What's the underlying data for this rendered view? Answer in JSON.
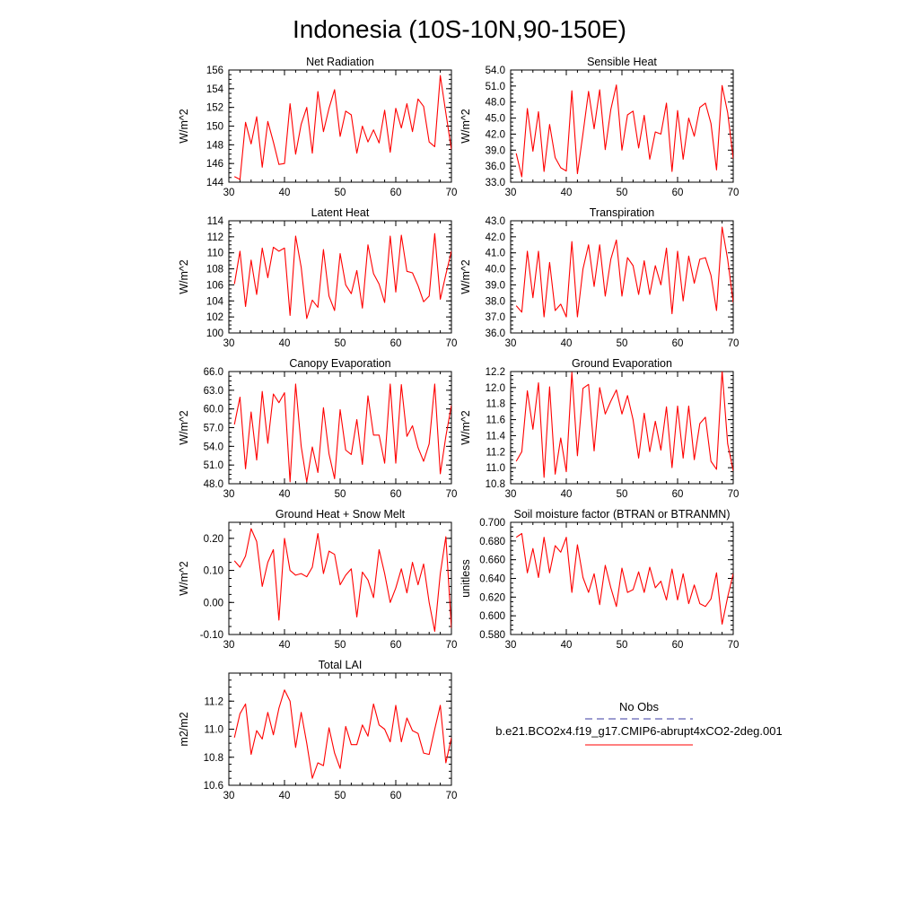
{
  "title": "Indonesia (10S-10N,90-150E)",
  "legend": {
    "entries": [
      {
        "label": "No Obs",
        "color": "#3a3aa0",
        "style": "dashed"
      },
      {
        "label": "b.e21.BCO2x4.f19_g17.CMIP6-abrupt4xCO2-2deg.001",
        "color": "#ff0000",
        "style": "solid"
      }
    ]
  },
  "chart_data": [
    {
      "type": "line",
      "title": "Net Radiation",
      "ylabel": "W/m^2",
      "xlim": [
        30,
        70
      ],
      "ylim": [
        144,
        156
      ],
      "xticks": [
        30,
        40,
        50,
        60,
        70
      ],
      "yticks": [
        144,
        146,
        148,
        150,
        152,
        154,
        156
      ],
      "ytick_labels": [
        "144",
        "146",
        "148",
        "150",
        "152",
        "154",
        "156"
      ],
      "series": [
        {
          "name": "b.e21.BCO2x4.f19_g17.CMIP6-abrupt4xCO2-2deg.001",
          "color": "#ff0000",
          "x": [
            31,
            32,
            33,
            34,
            35,
            36,
            37,
            38,
            39,
            40,
            41,
            42,
            43,
            44,
            45,
            46,
            47,
            48,
            49,
            50,
            51,
            52,
            53,
            54,
            55,
            56,
            57,
            58,
            59,
            60,
            61,
            62,
            63,
            64,
            65,
            66,
            67,
            68,
            69,
            70
          ],
          "values": [
            144.6,
            144.3,
            150.4,
            148.1,
            151.0,
            145.6,
            150.5,
            148.3,
            145.9,
            146.0,
            152.4,
            147.0,
            150.2,
            152.0,
            147.1,
            153.7,
            149.4,
            151.9,
            153.9,
            148.9,
            151.6,
            151.2,
            147.1,
            150.0,
            148.3,
            149.6,
            148.2,
            151.7,
            147.2,
            151.9,
            149.8,
            152.4,
            149.4,
            152.9,
            152.1,
            148.3,
            147.8,
            155.4,
            151.4,
            147.5
          ]
        }
      ]
    },
    {
      "type": "line",
      "title": "Sensible Heat",
      "ylabel": "W/m^2",
      "xlim": [
        30,
        70
      ],
      "ylim": [
        33,
        54
      ],
      "xticks": [
        30,
        40,
        50,
        60,
        70
      ],
      "yticks": [
        33,
        36,
        39,
        42,
        45,
        48,
        51,
        54
      ],
      "ytick_labels": [
        "33.0",
        "36.0",
        "39.0",
        "42.0",
        "45.0",
        "48.0",
        "51.0",
        "54.0"
      ],
      "series": [
        {
          "name": "b.e21.BCO2x4.f19_g17.CMIP6-abrupt4xCO2-2deg.001",
          "color": "#ff0000",
          "x": [
            31,
            32,
            33,
            34,
            35,
            36,
            37,
            38,
            39,
            40,
            41,
            42,
            43,
            44,
            45,
            46,
            47,
            48,
            49,
            50,
            51,
            52,
            53,
            54,
            55,
            56,
            57,
            58,
            59,
            60,
            61,
            62,
            63,
            64,
            65,
            66,
            67,
            68,
            69,
            70
          ],
          "values": [
            38.4,
            34.0,
            46.8,
            38.8,
            46.2,
            35.0,
            43.8,
            37.6,
            35.7,
            35.1,
            50.1,
            34.6,
            42.1,
            50.0,
            43.0,
            50.3,
            39.1,
            46.6,
            51.2,
            39.0,
            45.6,
            46.3,
            39.4,
            45.5,
            37.3,
            42.4,
            42.0,
            47.8,
            35.0,
            46.4,
            37.3,
            45.0,
            41.6,
            47.0,
            47.8,
            44.0,
            35.3,
            51.1,
            46.0,
            37.4
          ]
        }
      ]
    },
    {
      "type": "line",
      "title": "Latent Heat",
      "ylabel": "W/m^2",
      "xlim": [
        30,
        70
      ],
      "ylim": [
        100,
        114
      ],
      "xticks": [
        30,
        40,
        50,
        60,
        70
      ],
      "yticks": [
        100,
        102,
        104,
        106,
        108,
        110,
        112,
        114
      ],
      "ytick_labels": [
        "100",
        "102",
        "104",
        "106",
        "108",
        "110",
        "112",
        "114"
      ],
      "series": [
        {
          "name": "b.e21.BCO2x4.f19_g17.CMIP6-abrupt4xCO2-2deg.001",
          "color": "#ff0000",
          "x": [
            31,
            32,
            33,
            34,
            35,
            36,
            37,
            38,
            39,
            40,
            41,
            42,
            43,
            44,
            45,
            46,
            47,
            48,
            49,
            50,
            51,
            52,
            53,
            54,
            55,
            56,
            57,
            58,
            59,
            60,
            61,
            62,
            63,
            64,
            65,
            66,
            67,
            68,
            69,
            70
          ],
          "values": [
            106.1,
            110.2,
            103.3,
            109.1,
            104.8,
            110.6,
            106.9,
            110.7,
            110.2,
            110.6,
            102.2,
            112.1,
            108.2,
            101.8,
            104.1,
            103.2,
            110.4,
            104.6,
            102.8,
            109.9,
            106.0,
            104.9,
            107.8,
            103.1,
            111.0,
            107.4,
            106.1,
            103.8,
            112.1,
            105.1,
            112.2,
            107.7,
            107.5,
            105.9,
            103.9,
            104.6,
            112.4,
            104.2,
            107.3,
            110.2
          ]
        }
      ]
    },
    {
      "type": "line",
      "title": "Transpiration",
      "ylabel": "W/m^2",
      "xlim": [
        30,
        70
      ],
      "ylim": [
        36,
        43
      ],
      "xticks": [
        30,
        40,
        50,
        60,
        70
      ],
      "yticks": [
        36,
        37,
        38,
        39,
        40,
        41,
        42,
        43
      ],
      "ytick_labels": [
        "36.0",
        "37.0",
        "38.0",
        "39.0",
        "40.0",
        "41.0",
        "42.0",
        "43.0"
      ],
      "series": [
        {
          "name": "b.e21.BCO2x4.f19_g17.CMIP6-abrupt4xCO2-2deg.001",
          "color": "#ff0000",
          "x": [
            31,
            32,
            33,
            34,
            35,
            36,
            37,
            38,
            39,
            40,
            41,
            42,
            43,
            44,
            45,
            46,
            47,
            48,
            49,
            50,
            51,
            52,
            53,
            54,
            55,
            56,
            57,
            58,
            59,
            60,
            61,
            62,
            63,
            64,
            65,
            66,
            67,
            68,
            69,
            70
          ],
          "values": [
            37.7,
            37.3,
            41.1,
            38.2,
            41.1,
            37.0,
            40.4,
            37.4,
            37.8,
            37.0,
            41.7,
            37.0,
            40.0,
            41.5,
            38.9,
            41.5,
            38.3,
            40.6,
            41.8,
            38.3,
            40.7,
            40.2,
            38.4,
            40.5,
            38.4,
            40.2,
            39.0,
            41.3,
            37.2,
            41.1,
            38.0,
            40.8,
            39.1,
            40.6,
            40.7,
            39.6,
            37.4,
            42.6,
            40.6,
            37.9
          ]
        }
      ]
    },
    {
      "type": "line",
      "title": "Canopy Evaporation",
      "ylabel": "W/m^2",
      "xlim": [
        30,
        70
      ],
      "ylim": [
        48,
        66
      ],
      "xticks": [
        30,
        40,
        50,
        60,
        70
      ],
      "yticks": [
        48,
        51,
        54,
        57,
        60,
        63,
        66
      ],
      "ytick_labels": [
        "48.0",
        "51.0",
        "54.0",
        "57.0",
        "60.0",
        "63.0",
        "66.0"
      ],
      "series": [
        {
          "name": "b.e21.BCO2x4.f19_g17.CMIP6-abrupt4xCO2-2deg.001",
          "color": "#ff0000",
          "x": [
            31,
            32,
            33,
            34,
            35,
            36,
            37,
            38,
            39,
            40,
            41,
            42,
            43,
            44,
            45,
            46,
            47,
            48,
            49,
            50,
            51,
            52,
            53,
            54,
            55,
            56,
            57,
            58,
            59,
            60,
            61,
            62,
            63,
            64,
            65,
            66,
            67,
            68,
            69,
            70
          ],
          "values": [
            57.5,
            61.9,
            50.4,
            59.5,
            51.8,
            62.8,
            54.5,
            62.4,
            61.0,
            62.6,
            48.3,
            64.0,
            54.0,
            48.3,
            53.9,
            49.8,
            60.2,
            52.8,
            48.8,
            59.9,
            53.4,
            52.7,
            58.3,
            51.1,
            62.1,
            55.8,
            55.8,
            51.3,
            64.0,
            51.3,
            63.9,
            55.6,
            57.3,
            53.8,
            51.6,
            54.4,
            64.0,
            49.6,
            55.6,
            60.6
          ]
        }
      ]
    },
    {
      "type": "line",
      "title": "Ground Evaporation",
      "ylabel": "W/m^2",
      "xlim": [
        30,
        70
      ],
      "ylim": [
        10.8,
        12.2
      ],
      "xticks": [
        30,
        40,
        50,
        60,
        70
      ],
      "yticks": [
        10.8,
        11.0,
        11.2,
        11.4,
        11.6,
        11.8,
        12.0,
        12.2
      ],
      "ytick_labels": [
        "10.8",
        "11.0",
        "11.2",
        "11.4",
        "11.6",
        "11.8",
        "12.0",
        "12.2"
      ],
      "series": [
        {
          "name": "b.e21.BCO2x4.f19_g17.CMIP6-abrupt4xCO2-2deg.001",
          "color": "#ff0000",
          "x": [
            31,
            32,
            33,
            34,
            35,
            36,
            37,
            38,
            39,
            40,
            41,
            42,
            43,
            44,
            45,
            46,
            47,
            48,
            49,
            50,
            51,
            52,
            53,
            54,
            55,
            56,
            57,
            58,
            59,
            60,
            61,
            62,
            63,
            64,
            65,
            66,
            67,
            68,
            69,
            70
          ],
          "values": [
            11.08,
            11.2,
            11.96,
            11.48,
            12.06,
            10.88,
            12.01,
            10.92,
            11.37,
            10.95,
            12.19,
            11.15,
            11.99,
            12.04,
            11.21,
            12.0,
            11.67,
            11.83,
            11.97,
            11.67,
            11.9,
            11.6,
            11.12,
            11.68,
            11.2,
            11.58,
            11.22,
            11.76,
            11.0,
            11.77,
            11.12,
            11.77,
            11.1,
            11.55,
            11.63,
            11.08,
            10.98,
            12.21,
            11.3,
            10.96
          ]
        }
      ]
    },
    {
      "type": "line",
      "title": "Ground Heat + Snow Melt",
      "ylabel": "W/m^2",
      "xlim": [
        30,
        70
      ],
      "ylim": [
        -0.1,
        0.25
      ],
      "xticks": [
        30,
        40,
        50,
        60,
        70
      ],
      "yticks": [
        -0.1,
        0.0,
        0.1,
        0.2
      ],
      "ytick_labels": [
        "-0.10",
        "0.00",
        "0.10",
        "0.20"
      ],
      "series": [
        {
          "name": "b.e21.BCO2x4.f19_g17.CMIP6-abrupt4xCO2-2deg.001",
          "color": "#ff0000",
          "x": [
            31,
            32,
            33,
            34,
            35,
            36,
            37,
            38,
            39,
            40,
            41,
            42,
            43,
            44,
            45,
            46,
            47,
            48,
            49,
            50,
            51,
            52,
            53,
            54,
            55,
            56,
            57,
            58,
            59,
            60,
            61,
            62,
            63,
            64,
            65,
            66,
            67,
            68,
            69,
            70
          ],
          "values": [
            0.13,
            0.11,
            0.145,
            0.23,
            0.19,
            0.05,
            0.125,
            0.165,
            -0.055,
            0.2,
            0.1,
            0.085,
            0.09,
            0.08,
            0.11,
            0.215,
            0.09,
            0.16,
            0.15,
            0.055,
            0.085,
            0.105,
            -0.045,
            0.095,
            0.07,
            0.015,
            0.165,
            0.09,
            0.0,
            0.045,
            0.105,
            0.03,
            0.125,
            0.055,
            0.12,
            0.0,
            -0.09,
            0.09,
            0.205,
            -0.08
          ]
        }
      ]
    },
    {
      "type": "line",
      "title": "Soil moisture factor (BTRAN or BTRANMN)",
      "ylabel": "unitless",
      "xlim": [
        30,
        70
      ],
      "ylim": [
        0.58,
        0.7
      ],
      "xticks": [
        30,
        40,
        50,
        60,
        70
      ],
      "yticks": [
        0.58,
        0.6,
        0.62,
        0.64,
        0.66,
        0.68,
        0.7
      ],
      "ytick_labels": [
        "0.580",
        "0.600",
        "0.620",
        "0.640",
        "0.660",
        "0.680",
        "0.700"
      ],
      "series": [
        {
          "name": "b.e21.BCO2x4.f19_g17.CMIP6-abrupt4xCO2-2deg.001",
          "color": "#ff0000",
          "x": [
            31,
            32,
            33,
            34,
            35,
            36,
            37,
            38,
            39,
            40,
            41,
            42,
            43,
            44,
            45,
            46,
            47,
            48,
            49,
            50,
            51,
            52,
            53,
            54,
            55,
            56,
            57,
            58,
            59,
            60,
            61,
            62,
            63,
            64,
            65,
            66,
            67,
            68,
            69,
            70
          ],
          "values": [
            0.684,
            0.688,
            0.646,
            0.672,
            0.641,
            0.684,
            0.646,
            0.675,
            0.668,
            0.684,
            0.625,
            0.676,
            0.641,
            0.625,
            0.645,
            0.612,
            0.654,
            0.63,
            0.61,
            0.651,
            0.625,
            0.628,
            0.647,
            0.625,
            0.652,
            0.63,
            0.637,
            0.617,
            0.65,
            0.617,
            0.645,
            0.613,
            0.633,
            0.613,
            0.61,
            0.618,
            0.646,
            0.591,
            0.62,
            0.645
          ]
        }
      ]
    },
    {
      "type": "line",
      "title": "Total LAI",
      "ylabel": "m2/m2",
      "xlim": [
        30,
        70
      ],
      "ylim": [
        10.6,
        11.4
      ],
      "xticks": [
        30,
        40,
        50,
        60,
        70
      ],
      "yticks": [
        10.6,
        10.8,
        11.0,
        11.2
      ],
      "ytick_labels": [
        "10.6",
        "10.8",
        "11.0",
        "11.2"
      ],
      "series": [
        {
          "name": "b.e21.BCO2x4.f19_g17.CMIP6-abrupt4xCO2-2deg.001",
          "color": "#ff0000",
          "x": [
            31,
            32,
            33,
            34,
            35,
            36,
            37,
            38,
            39,
            40,
            41,
            42,
            43,
            44,
            45,
            46,
            47,
            48,
            49,
            50,
            51,
            52,
            53,
            54,
            55,
            56,
            57,
            58,
            59,
            60,
            61,
            62,
            63,
            64,
            65,
            66,
            67,
            68,
            69,
            70
          ],
          "values": [
            10.94,
            11.11,
            11.18,
            10.82,
            10.99,
            10.93,
            11.12,
            10.96,
            11.15,
            11.28,
            11.2,
            10.87,
            11.12,
            10.9,
            10.65,
            10.76,
            10.74,
            11.01,
            10.83,
            10.72,
            11.02,
            10.89,
            10.89,
            11.03,
            10.95,
            11.18,
            11.03,
            11.0,
            10.91,
            11.17,
            10.91,
            11.08,
            10.99,
            10.97,
            10.83,
            10.82,
            11.0,
            11.17,
            10.76,
            10.94
          ]
        }
      ]
    }
  ]
}
